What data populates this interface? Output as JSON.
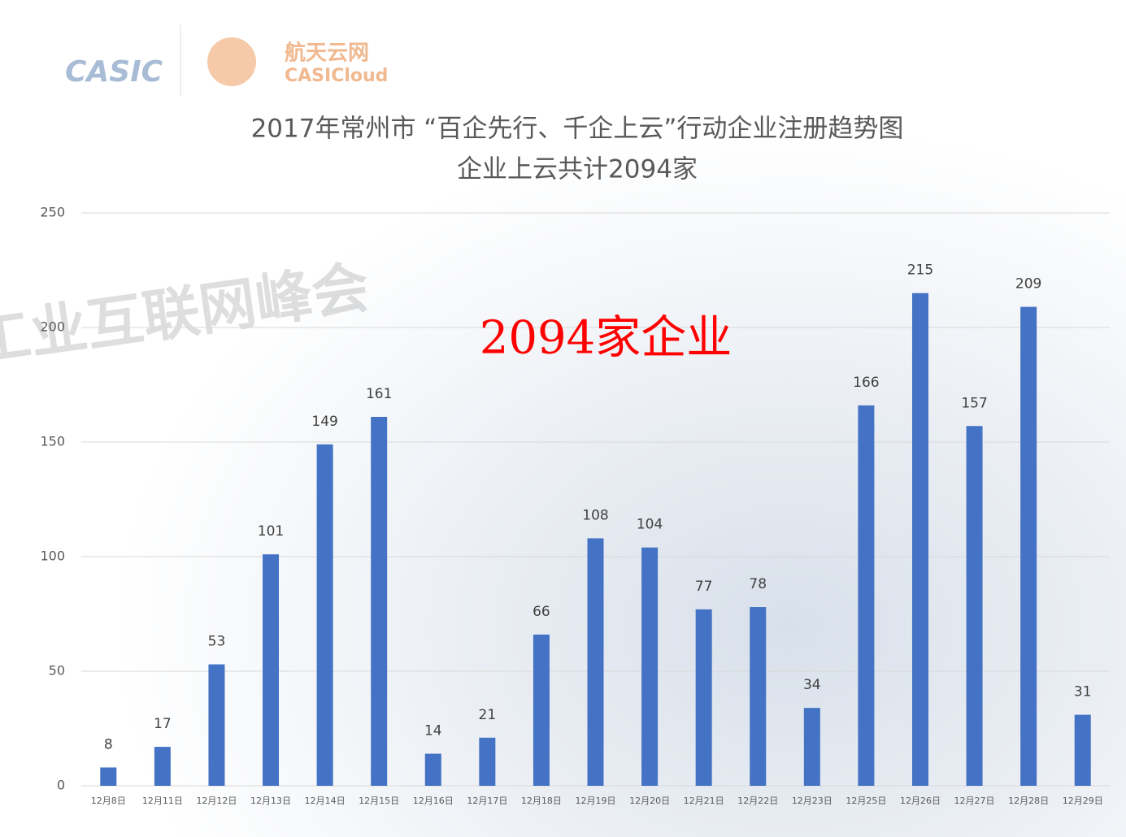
{
  "chart_data": {
    "type": "bar",
    "logo": {
      "brand": "CASIC",
      "name_cn": "航天云网",
      "name_en": "CASICloud"
    },
    "watermark": "工业互联网峰会",
    "title": "2017年常州市 “百企先行、千企上云”行动企业注册趋势图",
    "subtitle": "企业上云共计2094家",
    "annotation": "2094家企业",
    "categories": [
      "12月8日",
      "12月11日",
      "12月12日",
      "12月13日",
      "12月14日",
      "12月15日",
      "12月16日",
      "12月17日",
      "12月18日",
      "12月19日",
      "12月20日",
      "12月21日",
      "12月22日",
      "12月23日",
      "12月25日",
      "12月26日",
      "12月27日",
      "12月28日",
      "12月29日"
    ],
    "values": [
      8,
      17,
      53,
      101,
      149,
      161,
      14,
      21,
      66,
      108,
      104,
      77,
      78,
      34,
      166,
      215,
      157,
      209,
      31
    ],
    "color": "#4472c4",
    "ylim": [
      0,
      250
    ],
    "yticks": [
      0,
      50,
      100,
      150,
      200,
      250
    ],
    "grid": true
  }
}
